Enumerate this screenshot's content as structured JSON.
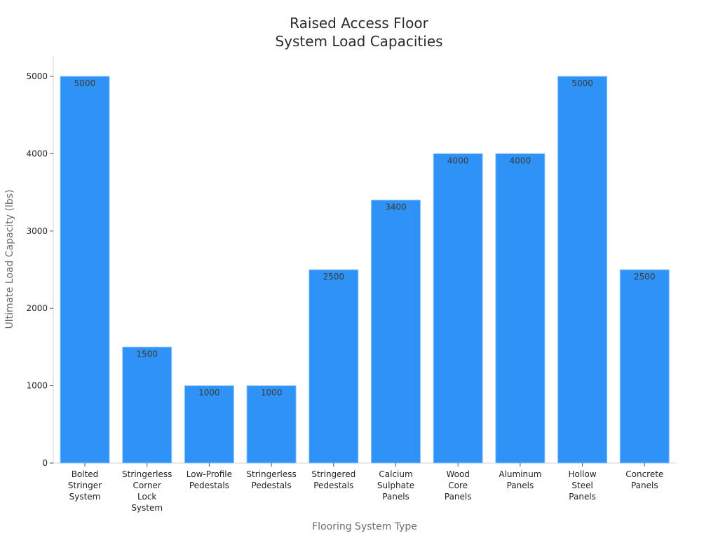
{
  "chart": {
    "title_line1": "Raised Access Floor",
    "title_line2": "System Load Capacities",
    "xlabel": "Flooring System Type",
    "ylabel": "Ultimate Load Capacity (lbs)",
    "bar_color": "#2f92f7"
  },
  "chart_data": {
    "type": "bar",
    "title": "Raised Access Floor System Load Capacities",
    "xlabel": "Flooring System Type",
    "ylabel": "Ultimate Load Capacity (lbs)",
    "categories": [
      "Bolted Stringer System",
      "Stringerless Corner Lock System",
      "Low-Profile Pedestals",
      "Stringerless Pedestals",
      "Stringered Pedestals",
      "Calcium Sulphate Panels",
      "Wood Core Panels",
      "Aluminum Panels",
      "Hollow Steel Panels",
      "Concrete Panels"
    ],
    "category_lines": [
      [
        "Bolted",
        "Stringer",
        "System"
      ],
      [
        "Stringerless",
        "Corner",
        "Lock",
        "System"
      ],
      [
        "Low-Profile",
        "Pedestals"
      ],
      [
        "Stringerless",
        "Pedestals"
      ],
      [
        "Stringered",
        "Pedestals"
      ],
      [
        "Calcium",
        "Sulphate",
        "Panels"
      ],
      [
        "Wood",
        "Core",
        "Panels"
      ],
      [
        "Aluminum",
        "Panels"
      ],
      [
        "Hollow",
        "Steel",
        "Panels"
      ],
      [
        "Concrete",
        "Panels"
      ]
    ],
    "values": [
      5000,
      1500,
      1000,
      1000,
      2500,
      3400,
      4000,
      4000,
      5000,
      2500
    ],
    "yticks": [
      0,
      1000,
      2000,
      3000,
      4000,
      5000
    ],
    "ylim": [
      0,
      5250
    ],
    "grid": false,
    "legend": null
  }
}
